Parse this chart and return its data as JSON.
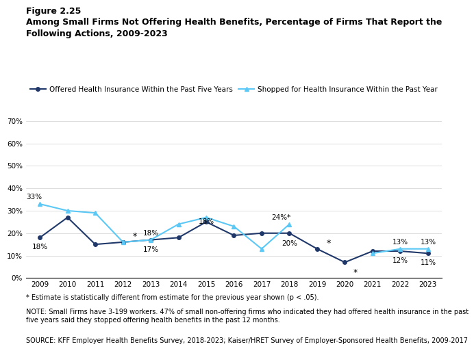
{
  "title_line1": "Figure 2.25",
  "title_line2": "Among Small Firms Not Offering Health Benefits, Percentage of Firms That Report the\nFollowing Actions, 2009-2023",
  "years": [
    2009,
    2010,
    2011,
    2012,
    2013,
    2014,
    2015,
    2016,
    2017,
    2018,
    2019,
    2020,
    2021,
    2022,
    2023
  ],
  "offered": [
    18,
    27,
    15,
    16,
    17,
    18,
    25,
    19,
    20,
    20,
    13,
    7,
    12,
    12,
    11
  ],
  "shopped": [
    33,
    30,
    29,
    16,
    17,
    24,
    27,
    23,
    13,
    24,
    null,
    null,
    11,
    13,
    13
  ],
  "offered_color": "#1f3869",
  "shopped_color": "#5bc8f5",
  "offered_label": "Offered Health Insurance Within the Past Five Years",
  "shopped_label": "Shopped for Health Insurance Within the Past Year",
  "ylim": [
    0,
    80
  ],
  "yticks": [
    0,
    10,
    20,
    30,
    40,
    50,
    60,
    70
  ],
  "ytick_labels": [
    "0%",
    "10%",
    "20%",
    "30%",
    "40%",
    "50%",
    "60%",
    "70%"
  ],
  "footnote1": "* Estimate is statistically different from estimate for the previous year shown (p < .05).",
  "footnote2": "NOTE: Small Firms have 3-199 workers. 47% of small non-offering firms who indicated they had offered health insurance in the past five years said they stopped offering health benefits in the past 12 months.",
  "footnote3": "SOURCE: KFF Employer Health Benefits Survey, 2018-2023; Kaiser/HRET Survey of Employer-Sponsored Health Benefits, 2009-2017",
  "background_color": "#ffffff"
}
